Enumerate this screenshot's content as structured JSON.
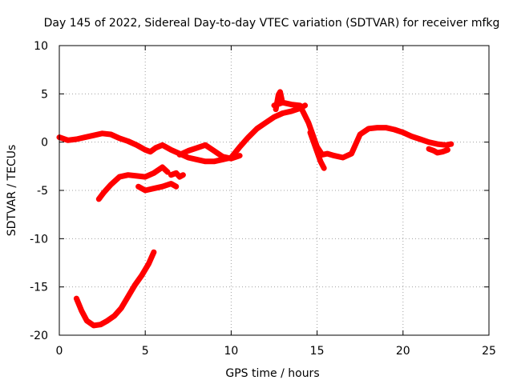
{
  "chart_data": {
    "type": "line",
    "title": "Day 145 of 2022, Sidereal Day-to-day VTEC variation (SDTVAR) for receiver mfkg",
    "xlabel": "GPS time / hours",
    "ylabel": "SDTVAR / TECUs",
    "xlim": [
      0,
      25
    ],
    "ylim": [
      -20,
      10
    ],
    "xticks": [
      0,
      5,
      10,
      15,
      20,
      25
    ],
    "yticks": [
      -20,
      -15,
      -10,
      -5,
      0,
      5,
      10
    ],
    "xtick_labels": [
      "0",
      "5",
      "10",
      "15",
      "20",
      "25"
    ],
    "ytick_labels": [
      "-20",
      "-15",
      "-10",
      "-5",
      "0",
      "5",
      "10"
    ],
    "grid": true,
    "series_color": "#ff0000",
    "series": [
      {
        "name": "arc-main-1",
        "x": [
          0.0,
          0.5,
          1.0,
          1.5,
          2.0,
          2.5,
          3.0,
          3.5,
          4.0,
          4.5,
          5.0,
          5.3,
          5.6,
          6.0,
          6.5,
          7.0,
          7.5,
          8.0,
          8.5,
          9.0,
          9.5,
          10.0,
          10.5,
          11.0,
          11.5,
          12.0,
          12.5,
          13.0,
          13.5,
          14.0,
          14.3
        ],
        "y": [
          0.5,
          0.2,
          0.3,
          0.5,
          0.7,
          0.9,
          0.8,
          0.4,
          0.1,
          -0.3,
          -0.8,
          -1.0,
          -0.6,
          -0.3,
          -0.8,
          -1.2,
          -1.6,
          -1.8,
          -2.0,
          -2.0,
          -1.8,
          -1.6,
          -0.5,
          0.5,
          1.4,
          2.0,
          2.6,
          3.0,
          3.2,
          3.5,
          3.8
        ]
      },
      {
        "name": "arc-main-1b",
        "x": [
          7.0,
          7.5,
          8.0,
          8.5,
          9.0,
          9.5,
          10.0,
          10.5
        ],
        "y": [
          -1.3,
          -0.9,
          -0.6,
          -0.3,
          -0.9,
          -1.5,
          -1.7,
          -1.4
        ]
      },
      {
        "name": "arc-main-2",
        "x": [
          12.5,
          13.0,
          13.5,
          14.0,
          14.5,
          15.0,
          15.3,
          15.6,
          16.0,
          16.5,
          17.0,
          17.5,
          18.0,
          18.5,
          19.0,
          19.5,
          20.0,
          20.5,
          21.0,
          21.5,
          22.0,
          22.5,
          22.8
        ],
        "y": [
          3.8,
          4.1,
          3.9,
          3.8,
          2.0,
          -0.5,
          -1.3,
          -1.2,
          -1.4,
          -1.6,
          -1.2,
          0.8,
          1.4,
          1.5,
          1.5,
          1.3,
          1.0,
          0.6,
          0.3,
          0.0,
          -0.2,
          -0.3,
          -0.2
        ]
      },
      {
        "name": "arc-dip-1",
        "x": [
          14.6,
          14.8,
          15.0,
          15.2,
          15.4
        ],
        "y": [
          1.0,
          0.0,
          -1.0,
          -2.0,
          -2.7
        ]
      },
      {
        "name": "arc-dip-2",
        "x": [
          21.5,
          21.8,
          22.0,
          22.3,
          22.6
        ],
        "y": [
          -0.7,
          -0.9,
          -1.1,
          -1.0,
          -0.8
        ]
      },
      {
        "name": "arc-peak",
        "x": [
          12.6,
          12.75,
          12.85,
          12.95
        ],
        "y": [
          3.4,
          4.9,
          5.2,
          4.4
        ]
      },
      {
        "name": "arc-low-1",
        "x": [
          2.3,
          2.6,
          3.0,
          3.5,
          4.0,
          4.5,
          5.0,
          5.5,
          6.0,
          6.3
        ],
        "y": [
          -5.9,
          -5.2,
          -4.4,
          -3.6,
          -3.4,
          -3.5,
          -3.6,
          -3.2,
          -2.6,
          -3.1
        ]
      },
      {
        "name": "arc-low-2",
        "x": [
          4.6,
          5.0,
          5.5,
          6.0,
          6.5,
          6.8
        ],
        "y": [
          -4.6,
          -5.0,
          -4.8,
          -4.6,
          -4.3,
          -4.6
        ]
      },
      {
        "name": "arc-low-3",
        "x": [
          6.5,
          6.8,
          7.0,
          7.2
        ],
        "y": [
          -3.4,
          -3.2,
          -3.6,
          -3.4
        ]
      },
      {
        "name": "arc-deep",
        "x": [
          1.0,
          1.3,
          1.6,
          2.0,
          2.4,
          2.8,
          3.2,
          3.6,
          4.0,
          4.4,
          4.8,
          5.2,
          5.5
        ],
        "y": [
          -16.2,
          -17.5,
          -18.5,
          -19.0,
          -18.9,
          -18.5,
          -18.0,
          -17.2,
          -16.0,
          -14.8,
          -13.8,
          -12.6,
          -11.4
        ]
      }
    ]
  }
}
